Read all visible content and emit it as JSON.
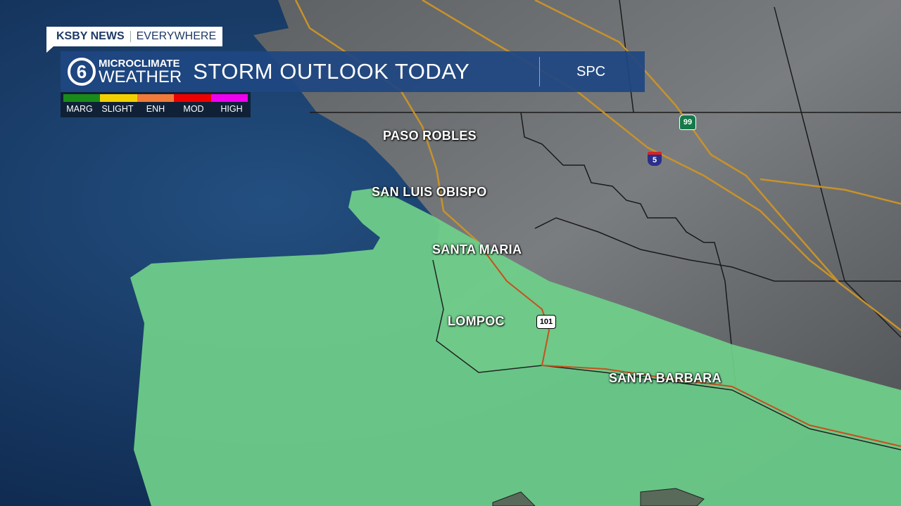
{
  "brand": {
    "name": "KSBY NEWS",
    "tagline": "EVERYWHERE"
  },
  "header": {
    "logo_number": "6",
    "logo_line1": "MICROCLIMATE",
    "logo_line2": "WEATHER",
    "title": "STORM OUTLOOK TODAY",
    "source": "SPC"
  },
  "legend": {
    "items": [
      {
        "label": "MARG",
        "color": "#1a8a1a"
      },
      {
        "label": "SLIGHT",
        "color": "#f2d000"
      },
      {
        "label": "ENH",
        "color": "#ef7a3a"
      },
      {
        "label": "MOD",
        "color": "#ee0000"
      },
      {
        "label": "HIGH",
        "color": "#ee00ee"
      }
    ]
  },
  "map": {
    "risk_area_category": "MARG",
    "risk_area_color": "#6fd08a",
    "cities": [
      "PASO ROBLES",
      "SAN LUIS OBISPO",
      "SANTA MARIA",
      "LOMPOC",
      "SANTA BARBARA"
    ],
    "highways": [
      "99",
      "5",
      "101"
    ]
  }
}
